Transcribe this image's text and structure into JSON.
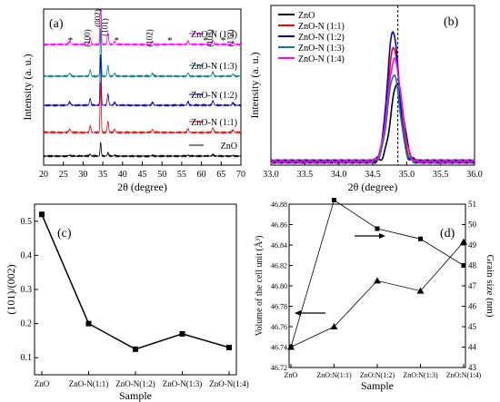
{
  "chart_data": [
    {
      "panel": "(a)",
      "type": "line",
      "ylabel": "Intensity (a. u.)",
      "xlabel": "2θ (degree)",
      "xlim": [
        20,
        70
      ],
      "xticks": [
        "20",
        "25",
        "30",
        "35",
        "40",
        "45",
        "50",
        "55",
        "60",
        "65",
        "70"
      ],
      "peak_labels": [
        {
          "x": 31.8,
          "text": "(100)"
        },
        {
          "x": 34.4,
          "text": "(002)"
        },
        {
          "x": 36.3,
          "text": "(101)"
        },
        {
          "x": 47.5,
          "text": "(102)"
        },
        {
          "x": 62.9,
          "text": "(103)"
        },
        {
          "x": 68.0,
          "text": "(112)"
        }
      ],
      "impurity_marks": [
        {
          "x": 26.8
        },
        {
          "x": 38.5
        },
        {
          "x": 52.0
        },
        {
          "x": 61.0
        },
        {
          "x": 65.6
        }
      ],
      "impurity_symbol": "*",
      "peaks": [
        {
          "x": 26.6,
          "h": 0.06,
          "w": 0.25
        },
        {
          "x": 31.8,
          "h": 0.13,
          "w": 0.18
        },
        {
          "x": 34.45,
          "h": 1.0,
          "w": 0.14
        },
        {
          "x": 36.3,
          "h": 0.22,
          "w": 0.18
        },
        {
          "x": 38.0,
          "h": 0.06,
          "w": 0.2
        },
        {
          "x": 47.6,
          "h": 0.06,
          "w": 0.2
        },
        {
          "x": 56.6,
          "h": 0.07,
          "w": 0.2
        },
        {
          "x": 62.9,
          "h": 0.09,
          "w": 0.2
        },
        {
          "x": 68.0,
          "h": 0.05,
          "w": 0.2
        }
      ],
      "series": [
        {
          "name": "ZnO-N (1:4)",
          "color": "#ff00ff",
          "offset": 4,
          "scale": 0.9
        },
        {
          "name": "ZnO-N (1:3)",
          "color": "#008080",
          "offset": 3,
          "scale": 0.85
        },
        {
          "name": "ZnO-N (1:2)",
          "color": "#0000cd",
          "offset": 2,
          "scale": 0.9
        },
        {
          "name": "ZnO-N (1:1)",
          "color": "#ff0000",
          "offset": 1,
          "scale": 0.9
        },
        {
          "name": "ZnO",
          "color": "#000000",
          "offset": 0,
          "scale": 0.25
        }
      ]
    },
    {
      "panel": "(b)",
      "type": "line",
      "ylabel": "Intensity (a. u.)",
      "xlabel": "2θ (degree)",
      "xlim": [
        33.0,
        36.0
      ],
      "xticks": [
        "33.0",
        "33.5",
        "34.0",
        "34.5",
        "35.0",
        "35.5",
        "36.0"
      ],
      "reference_line_x": 34.87,
      "series": [
        {
          "name": "ZnO",
          "color": "#000000",
          "center": 34.86,
          "height": 0.58,
          "width": 0.09
        },
        {
          "name": "ZnO-N (1:1)",
          "color": "#ff0000",
          "center": 34.81,
          "height": 0.84,
          "width": 0.09
        },
        {
          "name": "ZnO-N (1:2)",
          "color": "#0000cd",
          "center": 34.8,
          "height": 0.96,
          "width": 0.085
        },
        {
          "name": "ZnO-N (1:3)",
          "color": "#008080",
          "center": 34.81,
          "height": 0.64,
          "width": 0.09
        },
        {
          "name": "ZnO-N (1:4)",
          "color": "#ff00ff",
          "center": 34.82,
          "height": 0.75,
          "width": 0.1
        }
      ]
    },
    {
      "panel": "(c)",
      "type": "line",
      "ylabel": "(101)/(002)",
      "xlabel": "Sample",
      "categories": [
        "ZnO",
        "ZnO-N(1:1)",
        "ZnO-N(1:2)",
        "ZnO-N(1:3)",
        "ZnO-N(1:4)"
      ],
      "values": [
        0.52,
        0.2,
        0.125,
        0.17,
        0.13
      ],
      "ylim": [
        0.05,
        0.55
      ],
      "yticks": [
        "0.1",
        "0.2",
        "0.3",
        "0.4",
        "0.5"
      ],
      "color": "#000000"
    },
    {
      "panel": "(d)",
      "type": "line",
      "xlabel": "Sample",
      "categories": [
        "ZnO",
        "ZnO:N(1:1)",
        "ZnO:N(1:2)",
        "ZnO:N(1:3)",
        "ZnO:N(1:4)"
      ],
      "series": [
        {
          "axis": "left",
          "values": [
            46.74,
            46.76,
            46.805,
            46.795,
            46.843
          ],
          "color": "#000000"
        },
        {
          "axis": "right",
          "values": [
            44.0,
            51.2,
            49.8,
            49.3,
            48.0
          ],
          "color": "#000000"
        }
      ],
      "y_left": {
        "label": "Volume of the cell unit (Å³)",
        "lim": [
          46.72,
          46.88
        ],
        "ticks": [
          "46.72",
          "46.74",
          "46.76",
          "46.78",
          "46.80",
          "46.82",
          "46.84",
          "46.86",
          "46.88"
        ]
      },
      "y_right": {
        "label": "Grain size (nm)",
        "lim": [
          43,
          51
        ],
        "ticks": [
          "43",
          "44",
          "45",
          "46",
          "47",
          "48",
          "49",
          "50",
          "51"
        ]
      }
    }
  ]
}
